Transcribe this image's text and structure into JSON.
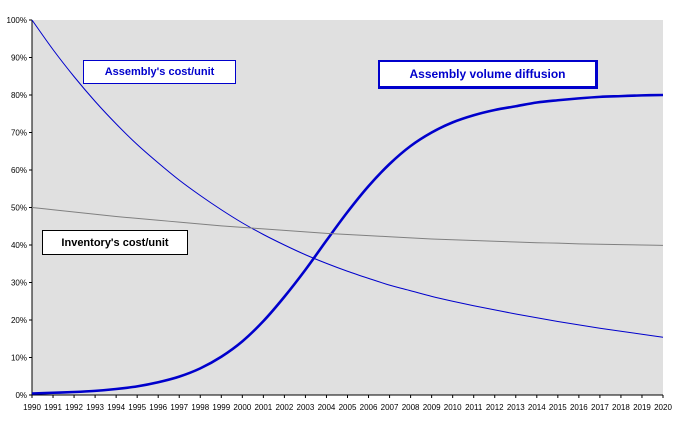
{
  "chart_data": {
    "type": "line",
    "x": [
      1990,
      1991,
      1992,
      1993,
      1994,
      1995,
      1996,
      1997,
      1998,
      1999,
      2000,
      2001,
      2002,
      2003,
      2004,
      2005,
      2006,
      2007,
      2008,
      2009,
      2010,
      2011,
      2012,
      2013,
      2014,
      2015,
      2016,
      2017,
      2018,
      2019,
      2020
    ],
    "x_tick_labels": [
      "1990",
      "1991",
      "1992",
      "1993",
      "1994",
      "1995",
      "1996",
      "1997",
      "1998",
      "1999",
      "2000",
      "2001",
      "2002",
      "2003",
      "2004",
      "2005",
      "2006",
      "2007",
      "2008",
      "2009",
      "2010",
      "2011",
      "2012",
      "2013",
      "2014",
      "2015",
      "2016",
      "2017",
      "2018",
      "2019",
      "2020"
    ],
    "y_tick_labels": [
      "0%",
      "10%",
      "20%",
      "30%",
      "40%",
      "50%",
      "60%",
      "70%",
      "80%",
      "90%",
      "100%"
    ],
    "ylim": [
      0,
      100
    ],
    "xlim": [
      1990,
      2020
    ],
    "grid": false,
    "background": "#e0e0e0",
    "series": [
      {
        "name": "Assembly's cost/unit",
        "color": "#0000cc",
        "width": "thin",
        "values": [
          100,
          92.1,
          84.9,
          78.3,
          72.3,
          66.8,
          61.9,
          57.3,
          53.2,
          49.4,
          45.9,
          42.8,
          40,
          37.4,
          35.1,
          33,
          31.1,
          29.3,
          27.8,
          26.3,
          25,
          23.8,
          22.7,
          21.6,
          20.6,
          19.6,
          18.7,
          17.8,
          17,
          16.2,
          15.4
        ]
      },
      {
        "name": "Assembly volume diffusion",
        "color": "#0000cc",
        "width": "thick",
        "values": [
          0.4,
          0.6,
          0.8,
          1.1,
          1.6,
          2.3,
          3.4,
          4.9,
          7.1,
          10.2,
          14.3,
          19.7,
          26.2,
          33.4,
          41.2,
          48.8,
          55.7,
          61.6,
          66.4,
          70,
          72.7,
          74.6,
          76,
          77,
          78,
          78.6,
          79.1,
          79.5,
          79.7,
          79.9,
          80
        ]
      },
      {
        "name": "Inventory's cost/unit",
        "color": "#808080",
        "width": "thin",
        "values": [
          50,
          49.4,
          48.8,
          48.2,
          47.6,
          47.1,
          46.6,
          46.1,
          45.6,
          45.1,
          44.7,
          44.3,
          43.9,
          43.5,
          43.1,
          42.8,
          42.5,
          42.2,
          41.9,
          41.6,
          41.4,
          41.2,
          41,
          40.8,
          40.6,
          40.5,
          40.3,
          40.2,
          40.1,
          40,
          39.9
        ]
      }
    ]
  },
  "labels": {
    "assembly_cost": "Assembly's cost/unit",
    "diffusion": "Assembly volume diffusion",
    "inventory_cost": "Inventory's cost/unit"
  }
}
